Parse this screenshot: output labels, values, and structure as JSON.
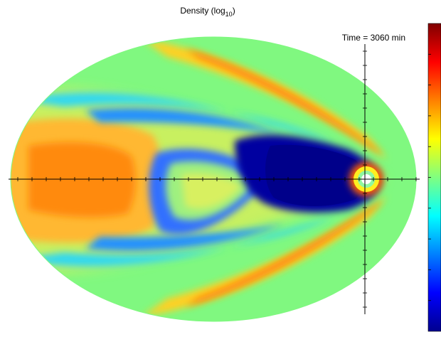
{
  "chart_data": {
    "type": "heatmap",
    "title": "Density (log10)",
    "title_main": "Density (log",
    "title_sub": "10",
    "title_close": ")",
    "annotation": "Time = 3060 min",
    "colormap": "jet",
    "colormap_stops": [
      "#00008f",
      "#0000ff",
      "#0080ff",
      "#00ffff",
      "#80ff80",
      "#ffff00",
      "#ff8000",
      "#ff0000",
      "#800000"
    ],
    "colorbar_tick_count": 10,
    "grid": false,
    "legend": "right (colorbar)",
    "colors": {
      "background_field": "#80f880",
      "outer_field": "#78e878",
      "low_density": "#00008f",
      "high_density": "#8b0000",
      "axis": "#000000"
    }
  }
}
